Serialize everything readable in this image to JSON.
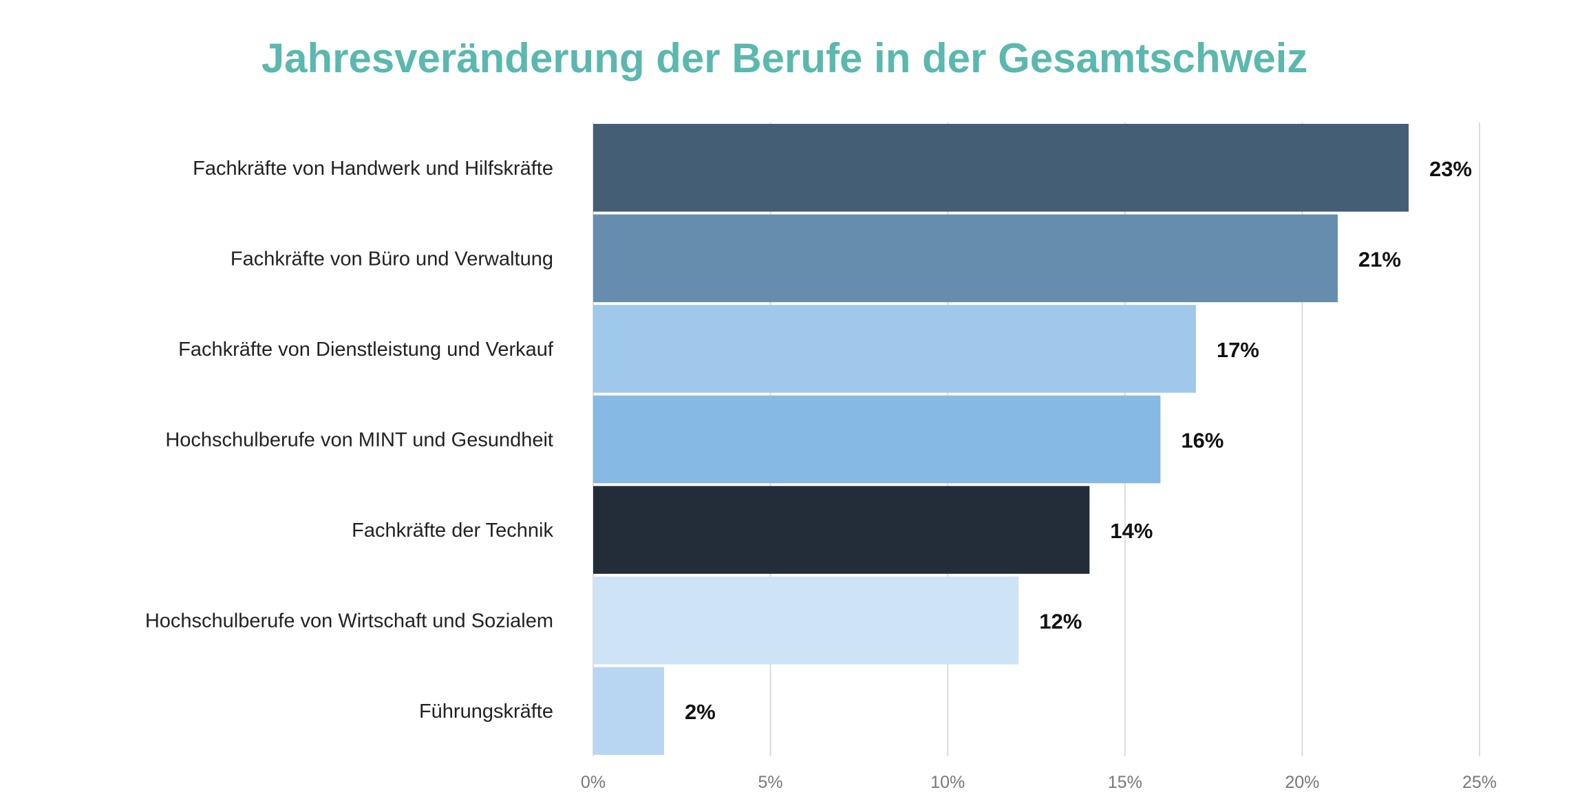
{
  "chart_data": {
    "type": "bar",
    "orientation": "horizontal",
    "title": "Jahresveränderung der Berufe in der Gesamtschweiz",
    "categories": [
      "Fachkräfte von Handwerk und Hilfskräfte",
      "Fachkräfte von Büro und Verwaltung",
      "Fachkräfte von Dienstleistung und Verkauf",
      "Hochschulberufe von MINT und Gesundheit",
      "Fachkräfte der Technik",
      "Hochschulberufe von Wirtschaft und Sozialem",
      "Führungskräfte"
    ],
    "values": [
      23,
      21,
      17,
      16,
      14,
      12,
      2
    ],
    "data_labels": [
      "23%",
      "21%",
      "17%",
      "16%",
      "14%",
      "12%",
      "2%"
    ],
    "colors": [
      "#445f75",
      "#668cae",
      "#9fc8ea",
      "#86b9e3",
      "#222d39",
      "#cfe3f6",
      "#b8d6f2"
    ],
    "xlim": [
      0,
      25
    ],
    "xticks": [
      0,
      5,
      10,
      15,
      20,
      25
    ],
    "xtick_labels": [
      "0%",
      "5%",
      "10%",
      "15%",
      "20%",
      "25%"
    ],
    "xlabel": "",
    "ylabel": "",
    "grid": "vertical",
    "title_color": "#5bb8ae"
  }
}
